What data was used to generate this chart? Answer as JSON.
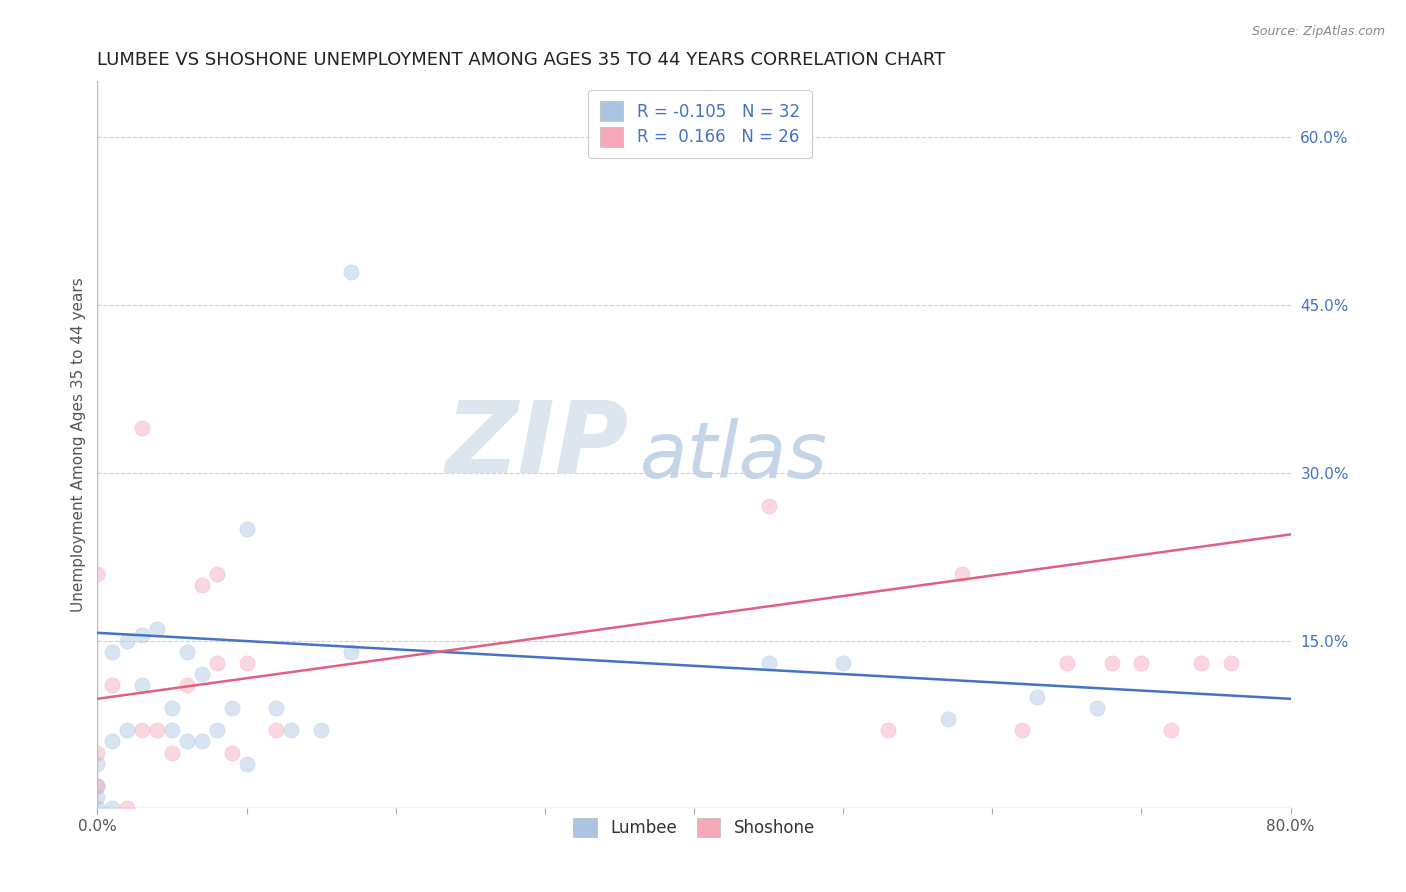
{
  "title": "LUMBEE VS SHOSHONE UNEMPLOYMENT AMONG AGES 35 TO 44 YEARS CORRELATION CHART",
  "source": "Source: ZipAtlas.com",
  "ylabel": "Unemployment Among Ages 35 to 44 years",
  "xlim": [
    0.0,
    0.8
  ],
  "ylim": [
    0.0,
    0.65
  ],
  "xticks": [
    0.0,
    0.1,
    0.2,
    0.3,
    0.4,
    0.5,
    0.6,
    0.7,
    0.8
  ],
  "xtick_labels": [
    "0.0%",
    "",
    "",
    "",
    "",
    "",
    "",
    "",
    "80.0%"
  ],
  "ytick_right_values": [
    0.15,
    0.3,
    0.45,
    0.6
  ],
  "ytick_right_labels": [
    "15.0%",
    "30.0%",
    "45.0%",
    "60.0%"
  ],
  "lumbee_color": "#aac4e2",
  "shoshone_color": "#f5a8ba",
  "lumbee_line_color": "#4472c4",
  "shoshone_line_color": "#e06080",
  "lumbee_R": -0.105,
  "lumbee_N": 32,
  "shoshone_R": 0.166,
  "shoshone_N": 26,
  "lumbee_line_y0": 0.157,
  "lumbee_line_y1": 0.098,
  "shoshone_line_y0": 0.098,
  "shoshone_line_y1": 0.245,
  "lumbee_x": [
    0.0,
    0.0,
    0.0,
    0.0,
    0.01,
    0.01,
    0.01,
    0.02,
    0.02,
    0.03,
    0.03,
    0.04,
    0.05,
    0.05,
    0.06,
    0.06,
    0.07,
    0.07,
    0.08,
    0.09,
    0.1,
    0.1,
    0.12,
    0.13,
    0.15,
    0.17,
    0.17,
    0.45,
    0.5,
    0.57,
    0.63,
    0.67
  ],
  "lumbee_y": [
    0.0,
    0.01,
    0.02,
    0.04,
    0.0,
    0.06,
    0.14,
    0.07,
    0.15,
    0.11,
    0.155,
    0.16,
    0.07,
    0.09,
    0.06,
    0.14,
    0.06,
    0.12,
    0.07,
    0.09,
    0.25,
    0.04,
    0.09,
    0.07,
    0.07,
    0.14,
    0.48,
    0.13,
    0.13,
    0.08,
    0.1,
    0.09
  ],
  "shoshone_x": [
    0.0,
    0.0,
    0.0,
    0.01,
    0.02,
    0.03,
    0.03,
    0.04,
    0.05,
    0.06,
    0.07,
    0.08,
    0.08,
    0.09,
    0.1,
    0.12,
    0.45,
    0.53,
    0.58,
    0.62,
    0.65,
    0.68,
    0.7,
    0.72,
    0.74,
    0.76
  ],
  "shoshone_y": [
    0.02,
    0.05,
    0.21,
    0.11,
    0.0,
    0.07,
    0.34,
    0.07,
    0.05,
    0.11,
    0.2,
    0.13,
    0.21,
    0.05,
    0.13,
    0.07,
    0.27,
    0.07,
    0.21,
    0.07,
    0.13,
    0.13,
    0.13,
    0.07,
    0.13,
    0.13
  ],
  "watermark_zip": "ZIP",
  "watermark_atlas": "atlas",
  "background_color": "#ffffff",
  "grid_color": "#d0d0d0",
  "title_fontsize": 13,
  "label_fontsize": 11,
  "tick_fontsize": 11,
  "legend_fontsize": 12,
  "marker_size": 120,
  "marker_alpha": 0.45,
  "marker_linewidth": 0.5
}
